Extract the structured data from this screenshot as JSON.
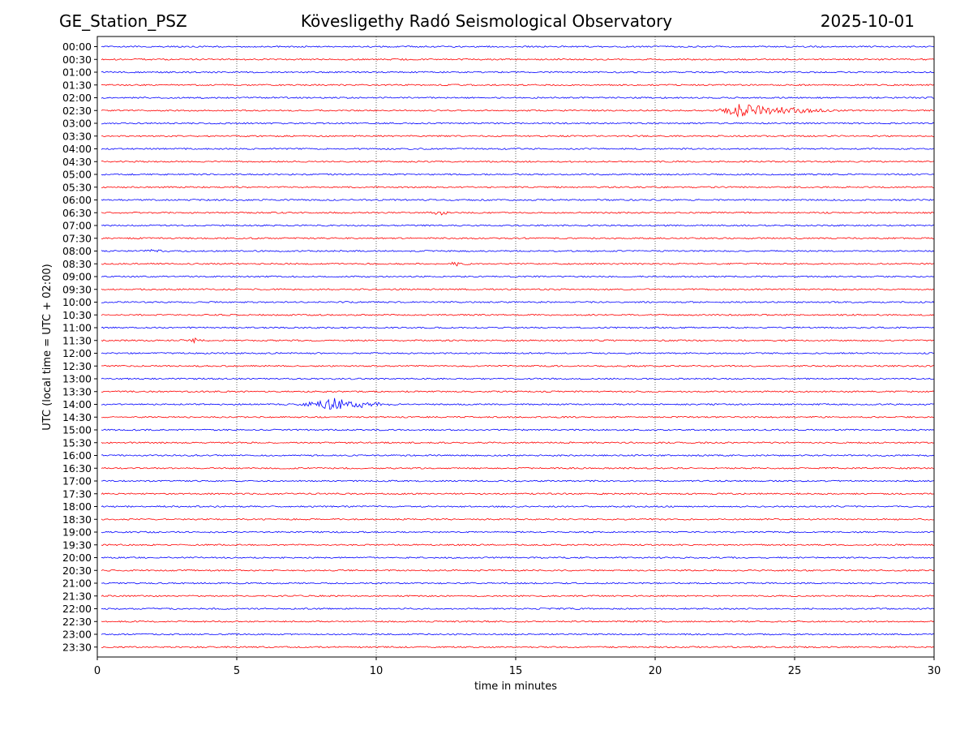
{
  "header": {
    "station": "GE_Station_PSZ",
    "observatory": "Kövesligethy Radó Seismological Observatory",
    "date": "2025-10-01"
  },
  "chart_data": {
    "type": "line",
    "title": "Kövesligethy Radó Seismological Observatory",
    "xlabel": "time in minutes",
    "ylabel": "UTC (local time = UTC + 02:00)",
    "xlim": [
      0,
      30
    ],
    "xticks": [
      0,
      5,
      10,
      15,
      20,
      25,
      30
    ],
    "grid": "vertical dotted lines at x ticks",
    "trace_colors": [
      "#0000ff",
      "#ff0000"
    ],
    "rows": [
      "00:00",
      "00:30",
      "01:00",
      "01:30",
      "02:00",
      "02:30",
      "03:00",
      "03:30",
      "04:00",
      "04:30",
      "05:00",
      "05:30",
      "06:00",
      "06:30",
      "07:00",
      "07:30",
      "08:00",
      "08:30",
      "09:00",
      "09:30",
      "10:00",
      "10:30",
      "11:00",
      "11:30",
      "12:00",
      "12:30",
      "13:00",
      "13:30",
      "14:00",
      "14:30",
      "15:00",
      "15:30",
      "16:00",
      "16:30",
      "17:00",
      "17:30",
      "18:00",
      "18:30",
      "19:00",
      "19:30",
      "20:00",
      "20:30",
      "21:00",
      "21:30",
      "22:00",
      "22:30",
      "23:00",
      "23:30"
    ],
    "events": [
      {
        "row": "02:30",
        "start_min": 22.0,
        "peak_min": 23.0,
        "end_min": 27.0,
        "amplitude": 1.0
      },
      {
        "row": "06:30",
        "start_min": 11.8,
        "peak_min": 12.3,
        "end_min": 12.8,
        "amplitude": 0.3
      },
      {
        "row": "08:00",
        "start_min": 1.5,
        "peak_min": 2.0,
        "end_min": 2.5,
        "amplitude": 0.2
      },
      {
        "row": "08:30",
        "start_min": 12.4,
        "peak_min": 12.9,
        "end_min": 13.5,
        "amplitude": 0.3
      },
      {
        "row": "11:30",
        "start_min": 2.8,
        "peak_min": 3.5,
        "end_min": 4.0,
        "amplitude": 0.3
      },
      {
        "row": "14:00",
        "start_min": 7.0,
        "peak_min": 8.5,
        "end_min": 10.8,
        "amplitude": 1.0
      }
    ]
  }
}
